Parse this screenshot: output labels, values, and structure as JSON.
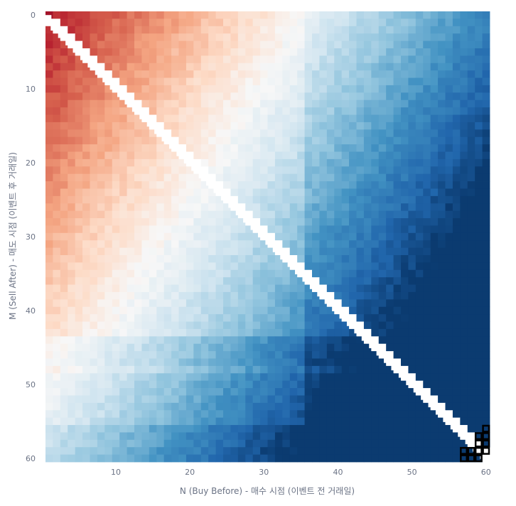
{
  "chart_data": {
    "type": "heatmap",
    "title": "",
    "xlabel": "N (Buy Before) - 매수 시점 (이벤트 전 거래일)",
    "ylabel": "M (Sell After) - 매도 시점 (이벤트 후 거래일)",
    "x_range": [
      1,
      60
    ],
    "y_range": [
      0,
      60
    ],
    "x_ticks": [
      "10",
      "20",
      "30",
      "40",
      "50",
      "60"
    ],
    "y_ticks": [
      "0",
      "10",
      "20",
      "30",
      "40",
      "50",
      "60"
    ],
    "colorscale": "RdBu",
    "colors": {
      "high": "#67001f",
      "mid": "#f7f7f7",
      "low": "#053061"
    },
    "diagonal_blank": true,
    "gridlines": false,
    "legend": "none",
    "highlighted_cells": [
      [
        57,
        59
      ],
      [
        57,
        60
      ],
      [
        58,
        59
      ],
      [
        58,
        60
      ],
      [
        59,
        59
      ],
      [
        59,
        60
      ],
      [
        60,
        59
      ],
      [
        59,
        58
      ],
      [
        60,
        57
      ],
      [
        60,
        56
      ],
      [
        60,
        58
      ],
      [
        59,
        57
      ]
    ]
  }
}
